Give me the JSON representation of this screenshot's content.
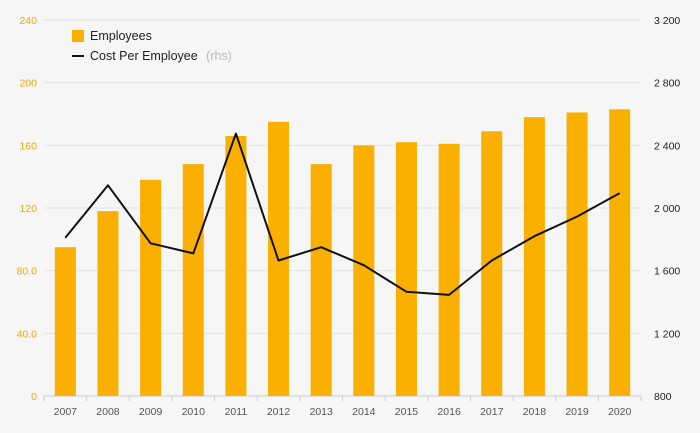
{
  "chart_data": {
    "type": "bar",
    "categories": [
      "2007",
      "2008",
      "2009",
      "2010",
      "2011",
      "2012",
      "2013",
      "2014",
      "2015",
      "2016",
      "2017",
      "2018",
      "2019",
      "2020"
    ],
    "series": [
      {
        "name": "Employees",
        "type": "bar",
        "axis": "left",
        "color": "#f9b000",
        "values": [
          95,
          118,
          138,
          148,
          166,
          175,
          148,
          160,
          162,
          161,
          169,
          178,
          181,
          183
        ]
      },
      {
        "name": "Cost Per Employee",
        "name_suffix": "(rhs)",
        "type": "line",
        "axis": "right",
        "color": "#111111",
        "values": [
          1810,
          2145,
          1775,
          1710,
          2475,
          1665,
          1750,
          1635,
          1465,
          1445,
          1665,
          1820,
          1945,
          2095
        ]
      }
    ],
    "y_left": {
      "lim": [
        0,
        240
      ],
      "ticks": [
        0,
        40,
        80,
        120,
        160,
        200,
        240
      ],
      "tick_labels": [
        "0",
        "40.0",
        "80.0",
        "120",
        "160",
        "200",
        "240"
      ],
      "color": "#f3a900"
    },
    "y_right": {
      "lim": [
        800,
        3200
      ],
      "ticks": [
        800,
        1200,
        1600,
        2000,
        2400,
        2800,
        3200
      ],
      "tick_labels": [
        "800",
        "1 200",
        "1 600",
        "2 000",
        "2 400",
        "2 800",
        "3 200"
      ],
      "color": "#222222"
    },
    "grid": true,
    "legend_position": "top-left"
  }
}
